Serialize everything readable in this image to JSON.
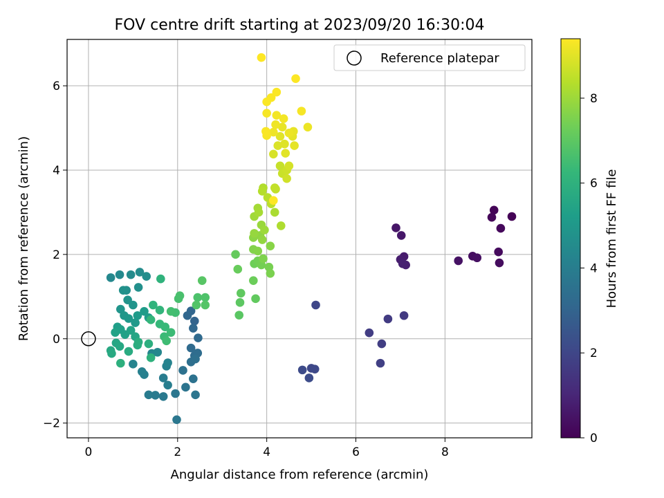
{
  "chart_data": {
    "type": "scatter",
    "title": "FOV centre drift starting at 2023/09/20 16:30:04",
    "xlabel": "Angular distance from reference (arcmin)",
    "ylabel": "Rotation from reference (arcmin)",
    "xlim": [
      -0.48,
      9.95
    ],
    "ylim": [
      -2.35,
      7.1
    ],
    "xticks": [
      0,
      2,
      4,
      6,
      8
    ],
    "yticks": [
      -2,
      0,
      2,
      4,
      6
    ],
    "grid": true,
    "legend": {
      "placement": "top-right",
      "label": "Reference platepar"
    },
    "reference_point": {
      "x": 0,
      "y": 0
    },
    "colorbar": {
      "label": "Hours from first FF file",
      "colormap": "viridis",
      "range": [
        0,
        9.4
      ],
      "ticks": [
        0,
        2,
        4,
        6,
        8
      ],
      "stops": [
        "#440154",
        "#482878",
        "#3e4989",
        "#31688e",
        "#26828e",
        "#1f9e89",
        "#35b779",
        "#6ece58",
        "#b5de2b",
        "#fde725"
      ]
    },
    "series": [
      {
        "values": [
          {
            "x": 9.5,
            "y": 2.9,
            "t": 0.05
          },
          {
            "x": 9.1,
            "y": 3.05,
            "t": 0.1
          },
          {
            "x": 9.05,
            "y": 2.88,
            "t": 0.15
          },
          {
            "x": 9.25,
            "y": 2.62,
            "t": 0.2
          },
          {
            "x": 9.2,
            "y": 2.06,
            "t": 0.25
          },
          {
            "x": 9.22,
            "y": 1.8,
            "t": 0.3
          },
          {
            "x": 8.62,
            "y": 1.96,
            "t": 0.35
          },
          {
            "x": 8.72,
            "y": 1.92,
            "t": 0.4
          },
          {
            "x": 8.3,
            "y": 1.85,
            "t": 0.45
          },
          {
            "x": 6.9,
            "y": 2.63,
            "t": 0.55
          },
          {
            "x": 7.02,
            "y": 2.45,
            "t": 0.6
          },
          {
            "x": 7.08,
            "y": 1.95,
            "t": 0.7
          },
          {
            "x": 7.0,
            "y": 1.88,
            "t": 0.75
          },
          {
            "x": 7.12,
            "y": 1.75,
            "t": 0.8
          },
          {
            "x": 7.05,
            "y": 1.78,
            "t": 0.85
          },
          {
            "x": 7.08,
            "y": 0.55,
            "t": 1.6
          },
          {
            "x": 6.72,
            "y": 0.47,
            "t": 1.65
          },
          {
            "x": 6.3,
            "y": 0.14,
            "t": 1.7
          },
          {
            "x": 6.58,
            "y": -0.12,
            "t": 1.75
          },
          {
            "x": 6.55,
            "y": -0.58,
            "t": 1.8
          },
          {
            "x": 5.1,
            "y": 0.8,
            "t": 2.0
          },
          {
            "x": 5.0,
            "y": -0.7,
            "t": 2.05
          },
          {
            "x": 5.08,
            "y": -0.72,
            "t": 2.1
          },
          {
            "x": 4.8,
            "y": -0.74,
            "t": 2.15
          },
          {
            "x": 4.95,
            "y": -0.93,
            "t": 2.2
          },
          {
            "x": 2.38,
            "y": 0.42,
            "t": 3.0
          },
          {
            "x": 2.3,
            "y": 0.66,
            "t": 3.05
          },
          {
            "x": 2.22,
            "y": 0.55,
            "t": 3.1
          },
          {
            "x": 2.35,
            "y": 0.25,
            "t": 3.15
          },
          {
            "x": 2.46,
            "y": 0.02,
            "t": 3.2
          },
          {
            "x": 2.3,
            "y": -0.22,
            "t": 3.25
          },
          {
            "x": 2.38,
            "y": -0.4,
            "t": 3.3
          },
          {
            "x": 2.45,
            "y": -0.34,
            "t": 3.35
          },
          {
            "x": 2.3,
            "y": -0.55,
            "t": 3.4
          },
          {
            "x": 2.4,
            "y": -0.48,
            "t": 3.45
          },
          {
            "x": 2.12,
            "y": -0.75,
            "t": 3.5
          },
          {
            "x": 2.35,
            "y": -0.95,
            "t": 3.55
          },
          {
            "x": 2.18,
            "y": -1.15,
            "t": 3.6
          },
          {
            "x": 2.4,
            "y": -1.33,
            "t": 3.65
          },
          {
            "x": 1.95,
            "y": -1.3,
            "t": 3.7
          },
          {
            "x": 1.98,
            "y": -1.92,
            "t": 3.75
          },
          {
            "x": 1.68,
            "y": -1.37,
            "t": 3.8
          },
          {
            "x": 1.5,
            "y": -1.34,
            "t": 3.85
          },
          {
            "x": 1.35,
            "y": -1.33,
            "t": 3.9
          },
          {
            "x": 1.68,
            "y": -0.93,
            "t": 3.95
          },
          {
            "x": 1.78,
            "y": -1.1,
            "t": 4.0
          },
          {
            "x": 1.25,
            "y": -0.85,
            "t": 4.05
          },
          {
            "x": 1.2,
            "y": -0.78,
            "t": 4.1
          },
          {
            "x": 1.75,
            "y": -0.65,
            "t": 4.15
          },
          {
            "x": 1.78,
            "y": -0.57,
            "t": 4.2
          },
          {
            "x": 1.0,
            "y": -0.6,
            "t": 4.25
          },
          {
            "x": 1.42,
            "y": -0.35,
            "t": 4.3
          },
          {
            "x": 1.55,
            "y": -0.32,
            "t": 4.35
          },
          {
            "x": 0.5,
            "y": 1.45,
            "t": 4.4
          },
          {
            "x": 0.7,
            "y": 1.52,
            "t": 4.45
          },
          {
            "x": 0.95,
            "y": 1.52,
            "t": 4.5
          },
          {
            "x": 1.15,
            "y": 1.58,
            "t": 4.55
          },
          {
            "x": 1.3,
            "y": 1.48,
            "t": 4.6
          },
          {
            "x": 0.85,
            "y": 1.15,
            "t": 4.65
          },
          {
            "x": 1.12,
            "y": 1.22,
            "t": 4.7
          },
          {
            "x": 0.78,
            "y": 1.15,
            "t": 4.75
          },
          {
            "x": 0.88,
            "y": 0.92,
            "t": 4.8
          },
          {
            "x": 1.0,
            "y": 0.8,
            "t": 4.85
          },
          {
            "x": 0.72,
            "y": 0.7,
            "t": 4.9
          },
          {
            "x": 0.8,
            "y": 0.55,
            "t": 4.95
          },
          {
            "x": 0.9,
            "y": 0.48,
            "t": 5.0
          },
          {
            "x": 1.05,
            "y": 0.38,
            "t": 5.05
          },
          {
            "x": 1.1,
            "y": 0.55,
            "t": 5.1
          },
          {
            "x": 1.25,
            "y": 0.65,
            "t": 5.15
          },
          {
            "x": 1.35,
            "y": 0.5,
            "t": 5.2
          },
          {
            "x": 0.65,
            "y": 0.28,
            "t": 5.25
          },
          {
            "x": 0.72,
            "y": 0.22,
            "t": 5.3
          },
          {
            "x": 0.82,
            "y": 0.1,
            "t": 5.35
          },
          {
            "x": 0.6,
            "y": 0.15,
            "t": 5.4
          },
          {
            "x": 0.95,
            "y": 0.2,
            "t": 5.45
          },
          {
            "x": 1.05,
            "y": 0.05,
            "t": 5.5
          },
          {
            "x": 0.62,
            "y": -0.1,
            "t": 5.55
          },
          {
            "x": 0.7,
            "y": -0.18,
            "t": 5.6
          },
          {
            "x": 0.5,
            "y": -0.28,
            "t": 5.65
          },
          {
            "x": 0.52,
            "y": -0.35,
            "t": 5.7
          },
          {
            "x": 0.9,
            "y": -0.3,
            "t": 5.75
          },
          {
            "x": 1.1,
            "y": -0.15,
            "t": 5.8
          },
          {
            "x": 1.12,
            "y": -0.08,
            "t": 5.85
          },
          {
            "x": 1.35,
            "y": -0.12,
            "t": 5.9
          },
          {
            "x": 0.72,
            "y": -0.58,
            "t": 5.95
          },
          {
            "x": 1.4,
            "y": -0.45,
            "t": 6.0
          },
          {
            "x": 1.62,
            "y": 1.42,
            "t": 6.05
          },
          {
            "x": 1.45,
            "y": 0.8,
            "t": 6.1
          },
          {
            "x": 1.6,
            "y": 0.68,
            "t": 6.15
          },
          {
            "x": 1.4,
            "y": 0.45,
            "t": 6.2
          },
          {
            "x": 1.6,
            "y": 0.35,
            "t": 6.25
          },
          {
            "x": 1.72,
            "y": 0.28,
            "t": 6.3
          },
          {
            "x": 1.7,
            "y": 0.05,
            "t": 6.35
          },
          {
            "x": 1.85,
            "y": 0.15,
            "t": 6.4
          },
          {
            "x": 1.75,
            "y": -0.05,
            "t": 6.45
          },
          {
            "x": 1.95,
            "y": 0.62,
            "t": 6.5
          },
          {
            "x": 1.85,
            "y": 0.65,
            "t": 6.55
          },
          {
            "x": 2.02,
            "y": 0.95,
            "t": 6.6
          },
          {
            "x": 2.05,
            "y": 1.02,
            "t": 6.65
          },
          {
            "x": 2.45,
            "y": 0.98,
            "t": 6.7
          },
          {
            "x": 2.62,
            "y": 0.98,
            "t": 6.75
          },
          {
            "x": 2.42,
            "y": 0.8,
            "t": 6.8
          },
          {
            "x": 2.62,
            "y": 0.8,
            "t": 6.85
          },
          {
            "x": 2.55,
            "y": 1.38,
            "t": 6.9
          },
          {
            "x": 3.38,
            "y": 0.56,
            "t": 6.95
          },
          {
            "x": 3.4,
            "y": 0.86,
            "t": 7.0
          },
          {
            "x": 3.42,
            "y": 1.08,
            "t": 7.05
          },
          {
            "x": 3.75,
            "y": 0.95,
            "t": 7.1
          },
          {
            "x": 3.3,
            "y": 2.0,
            "t": 7.15
          },
          {
            "x": 3.35,
            "y": 1.65,
            "t": 7.2
          },
          {
            "x": 3.7,
            "y": 1.38,
            "t": 7.25
          },
          {
            "x": 3.72,
            "y": 1.78,
            "t": 7.3
          },
          {
            "x": 3.8,
            "y": 1.85,
            "t": 7.35
          },
          {
            "x": 3.88,
            "y": 1.75,
            "t": 7.4
          },
          {
            "x": 4.05,
            "y": 1.7,
            "t": 7.45
          },
          {
            "x": 4.08,
            "y": 1.55,
            "t": 7.5
          },
          {
            "x": 3.92,
            "y": 1.9,
            "t": 7.55
          },
          {
            "x": 3.7,
            "y": 2.12,
            "t": 7.6
          },
          {
            "x": 3.8,
            "y": 2.08,
            "t": 7.65
          },
          {
            "x": 4.08,
            "y": 2.2,
            "t": 7.7
          },
          {
            "x": 3.7,
            "y": 2.4,
            "t": 7.75
          },
          {
            "x": 3.85,
            "y": 2.45,
            "t": 7.8
          },
          {
            "x": 3.9,
            "y": 2.35,
            "t": 7.85
          },
          {
            "x": 3.72,
            "y": 2.5,
            "t": 7.9
          },
          {
            "x": 3.88,
            "y": 2.7,
            "t": 7.95
          },
          {
            "x": 3.95,
            "y": 2.58,
            "t": 8.0
          },
          {
            "x": 3.72,
            "y": 2.9,
            "t": 8.05
          },
          {
            "x": 3.8,
            "y": 3.1,
            "t": 8.1
          },
          {
            "x": 3.82,
            "y": 3.0,
            "t": 8.15
          },
          {
            "x": 4.18,
            "y": 3.0,
            "t": 8.2
          },
          {
            "x": 4.32,
            "y": 2.68,
            "t": 8.25
          },
          {
            "x": 3.92,
            "y": 3.58,
            "t": 8.3
          },
          {
            "x": 3.9,
            "y": 3.5,
            "t": 8.35
          },
          {
            "x": 4.02,
            "y": 3.35,
            "t": 8.4
          },
          {
            "x": 4.1,
            "y": 3.2,
            "t": 8.45
          },
          {
            "x": 4.2,
            "y": 3.55,
            "t": 8.5
          },
          {
            "x": 4.18,
            "y": 3.58,
            "t": 8.55
          },
          {
            "x": 4.3,
            "y": 4.1,
            "t": 8.6
          },
          {
            "x": 4.35,
            "y": 3.92,
            "t": 8.65
          },
          {
            "x": 4.45,
            "y": 4.0,
            "t": 8.7
          },
          {
            "x": 4.45,
            "y": 3.8,
            "t": 8.75
          },
          {
            "x": 4.5,
            "y": 4.1,
            "t": 8.8
          },
          {
            "x": 4.15,
            "y": 4.38,
            "t": 8.85
          },
          {
            "x": 4.25,
            "y": 4.58,
            "t": 8.9
          },
          {
            "x": 4.4,
            "y": 4.62,
            "t": 8.95
          },
          {
            "x": 4.3,
            "y": 4.8,
            "t": 9.0
          },
          {
            "x": 4.42,
            "y": 4.4,
            "t": 9.0
          },
          {
            "x": 4.62,
            "y": 4.58,
            "t": 9.05
          },
          {
            "x": 4.58,
            "y": 4.8,
            "t": 9.05
          },
          {
            "x": 4.6,
            "y": 4.92,
            "t": 9.1
          },
          {
            "x": 4.35,
            "y": 5.02,
            "t": 9.1
          },
          {
            "x": 4.5,
            "y": 4.88,
            "t": 9.15
          },
          {
            "x": 4.92,
            "y": 5.02,
            "t": 9.15
          },
          {
            "x": 4.2,
            "y": 5.08,
            "t": 9.2
          },
          {
            "x": 4.15,
            "y": 4.9,
            "t": 9.2
          },
          {
            "x": 4.22,
            "y": 5.3,
            "t": 9.25
          },
          {
            "x": 4.38,
            "y": 5.22,
            "t": 9.25
          },
          {
            "x": 4.78,
            "y": 5.4,
            "t": 9.3
          },
          {
            "x": 4.0,
            "y": 5.35,
            "t": 9.3
          },
          {
            "x": 4.0,
            "y": 4.82,
            "t": 9.32
          },
          {
            "x": 3.98,
            "y": 4.92,
            "t": 9.34
          },
          {
            "x": 4.0,
            "y": 5.62,
            "t": 9.35
          },
          {
            "x": 4.1,
            "y": 5.72,
            "t": 9.36
          },
          {
            "x": 4.22,
            "y": 5.85,
            "t": 9.37
          },
          {
            "x": 4.15,
            "y": 3.28,
            "t": 9.38
          },
          {
            "x": 4.65,
            "y": 6.17,
            "t": 9.39
          },
          {
            "x": 3.88,
            "y": 6.67,
            "t": 9.4
          }
        ]
      }
    ]
  }
}
